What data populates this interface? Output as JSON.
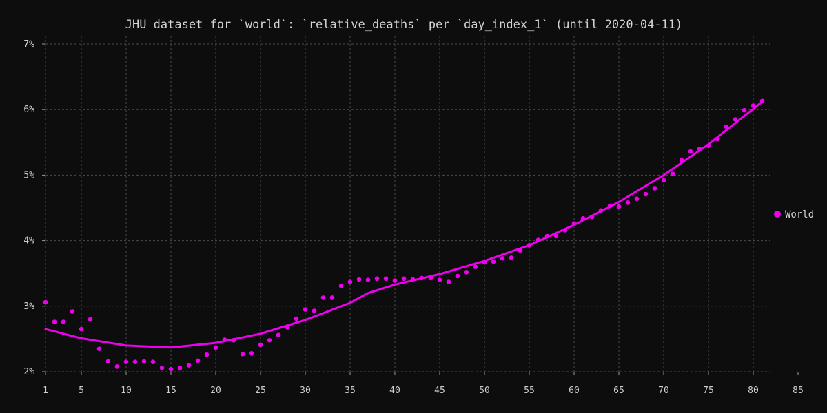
{
  "chart_data": {
    "type": "scatter",
    "title": "JHU dataset for `world`: `relative_deaths` per `day_index_1` (until 2020-04-11)",
    "xlabel": "",
    "ylabel": "",
    "xlim": [
      1,
      85
    ],
    "ylim": [
      2,
      7
    ],
    "x_ticks": [
      1,
      5,
      10,
      15,
      20,
      25,
      30,
      35,
      40,
      45,
      50,
      55,
      60,
      65,
      70,
      75,
      80,
      85
    ],
    "y_ticks": [
      2,
      3,
      4,
      5,
      6,
      7
    ],
    "y_tick_labels": [
      "2%",
      "3%",
      "4%",
      "5%",
      "6%",
      "7%"
    ],
    "grid": true,
    "legend_position": "right",
    "color": "#ee00ee",
    "series": [
      {
        "name": "World",
        "points": [
          [
            1,
            3.06
          ],
          [
            2,
            2.76
          ],
          [
            3,
            2.76
          ],
          [
            4,
            2.92
          ],
          [
            5,
            2.65
          ],
          [
            6,
            2.8
          ],
          [
            7,
            2.35
          ],
          [
            8,
            2.16
          ],
          [
            9,
            2.08
          ],
          [
            10,
            2.15
          ],
          [
            11,
            2.15
          ],
          [
            12,
            2.16
          ],
          [
            13,
            2.15
          ],
          [
            14,
            2.06
          ],
          [
            15,
            2.04
          ],
          [
            16,
            2.06
          ],
          [
            17,
            2.1
          ],
          [
            18,
            2.17
          ],
          [
            19,
            2.26
          ],
          [
            20,
            2.37
          ],
          [
            21,
            2.49
          ],
          [
            22,
            2.48
          ],
          [
            23,
            2.27
          ],
          [
            24,
            2.28
          ],
          [
            25,
            2.41
          ],
          [
            26,
            2.48
          ],
          [
            27,
            2.56
          ],
          [
            28,
            2.68
          ],
          [
            29,
            2.81
          ],
          [
            30,
            2.95
          ],
          [
            31,
            2.93
          ],
          [
            32,
            3.13
          ],
          [
            33,
            3.13
          ],
          [
            34,
            3.31
          ],
          [
            35,
            3.37
          ],
          [
            36,
            3.41
          ],
          [
            37,
            3.4
          ],
          [
            38,
            3.42
          ],
          [
            39,
            3.42
          ],
          [
            40,
            3.39
          ],
          [
            41,
            3.42
          ],
          [
            42,
            3.41
          ],
          [
            43,
            3.43
          ],
          [
            44,
            3.43
          ],
          [
            45,
            3.4
          ],
          [
            46,
            3.37
          ],
          [
            47,
            3.46
          ],
          [
            48,
            3.52
          ],
          [
            49,
            3.6
          ],
          [
            50,
            3.67
          ],
          [
            51,
            3.68
          ],
          [
            52,
            3.73
          ],
          [
            53,
            3.74
          ],
          [
            54,
            3.85
          ],
          [
            55,
            3.93
          ],
          [
            56,
            4.01
          ],
          [
            57,
            4.07
          ],
          [
            58,
            4.07
          ],
          [
            59,
            4.16
          ],
          [
            60,
            4.26
          ],
          [
            61,
            4.34
          ],
          [
            62,
            4.36
          ],
          [
            63,
            4.46
          ],
          [
            64,
            4.53
          ],
          [
            65,
            4.52
          ],
          [
            66,
            4.58
          ],
          [
            67,
            4.64
          ],
          [
            68,
            4.71
          ],
          [
            69,
            4.8
          ],
          [
            70,
            4.92
          ],
          [
            71,
            5.02
          ],
          [
            72,
            5.23
          ],
          [
            73,
            5.36
          ],
          [
            74,
            5.4
          ],
          [
            75,
            5.45
          ],
          [
            76,
            5.55
          ],
          [
            77,
            5.74
          ],
          [
            78,
            5.85
          ],
          [
            79,
            5.99
          ],
          [
            80,
            6.06
          ],
          [
            81,
            6.13
          ]
        ]
      }
    ],
    "trend_line": [
      [
        1,
        2.65
      ],
      [
        5,
        2.51
      ],
      [
        10,
        2.4
      ],
      [
        15,
        2.37
      ],
      [
        20,
        2.44
      ],
      [
        25,
        2.58
      ],
      [
        30,
        2.79
      ],
      [
        35,
        3.05
      ],
      [
        37,
        3.2
      ],
      [
        40,
        3.33
      ],
      [
        45,
        3.49
      ],
      [
        50,
        3.69
      ],
      [
        55,
        3.93
      ],
      [
        60,
        4.24
      ],
      [
        65,
        4.59
      ],
      [
        70,
        5.0
      ],
      [
        75,
        5.47
      ],
      [
        81,
        6.12
      ]
    ]
  }
}
